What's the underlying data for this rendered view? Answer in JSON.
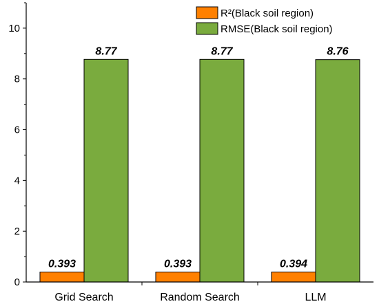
{
  "chart_data": {
    "type": "bar",
    "categories": [
      "Grid Search",
      "Random Search",
      "LLM"
    ],
    "series": [
      {
        "name": "R²(Black soil region)",
        "values": [
          0.393,
          0.393,
          0.394
        ],
        "labels": [
          "0.393",
          "0.393",
          "0.394"
        ],
        "color": "#ff8000"
      },
      {
        "name": "RMSE(Black soil region)",
        "values": [
          8.77,
          8.77,
          8.76
        ],
        "labels": [
          "8.77",
          "8.77",
          "8.76"
        ],
        "color": "#7aab3e"
      }
    ],
    "title": "",
    "xlabel": "",
    "ylabel": "",
    "ylim": [
      0,
      11
    ],
    "yticks": [
      0,
      2,
      4,
      6,
      8,
      10
    ],
    "grid": false,
    "legend_position": "top-right"
  }
}
